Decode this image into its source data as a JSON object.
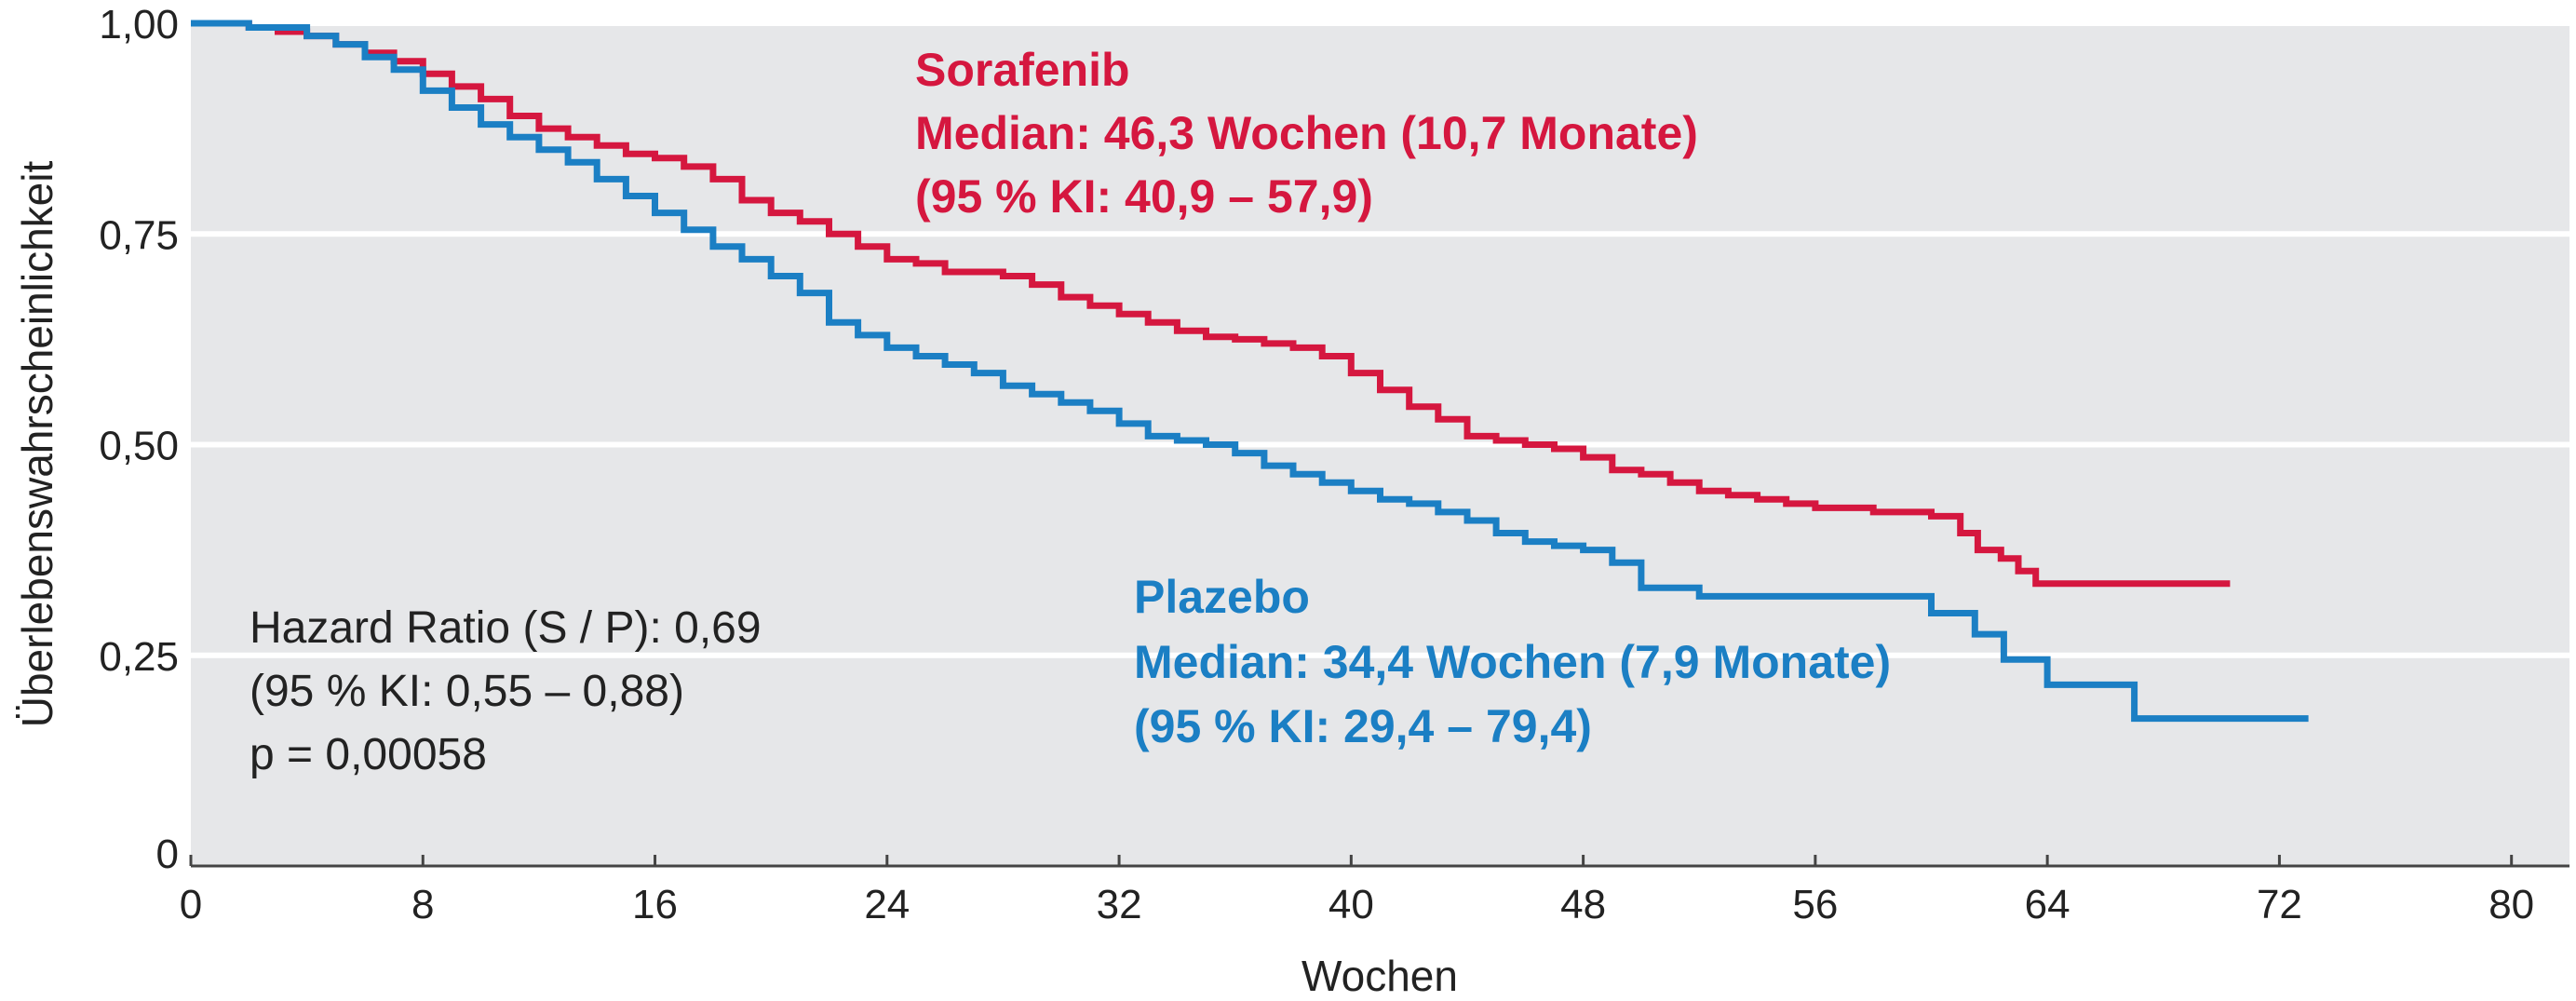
{
  "chart_data": {
    "type": "line",
    "subtype": "kaplan-meier step curve",
    "title": "",
    "xlabel": "Wochen",
    "ylabel": "Überlebenswahrscheinlichkeit",
    "xlim": [
      0,
      82
    ],
    "ylim": [
      0,
      1.0
    ],
    "xticks": [
      0,
      8,
      16,
      24,
      32,
      40,
      48,
      56,
      64,
      72,
      80
    ],
    "xtick_labels": [
      "0",
      "8",
      "16",
      "24",
      "32",
      "40",
      "48",
      "56",
      "64",
      "72",
      "80"
    ],
    "yticks": [
      0,
      0.25,
      0.5,
      0.75,
      1.0
    ],
    "ytick_labels": [
      "0",
      "0,25",
      "0,50",
      "0,75",
      "1,00"
    ],
    "grid": "horizontal",
    "background": "#e6e7e9",
    "series": [
      {
        "name": "Sorafenib",
        "color": "#d5173f",
        "x": [
          0,
          2,
          3,
          4,
          5,
          6,
          7,
          8,
          9,
          10,
          11,
          12,
          13,
          14,
          15,
          16,
          17,
          18,
          19,
          20,
          21,
          22,
          23,
          24,
          25,
          26,
          27,
          28,
          29,
          30,
          31,
          32,
          33,
          34,
          35,
          36,
          37,
          38,
          39,
          40,
          41,
          42,
          43,
          44,
          45,
          46,
          47,
          48,
          49,
          50,
          51,
          52,
          53,
          54,
          55,
          56,
          58,
          60,
          61,
          61.6,
          62.4,
          63,
          63.6,
          70.3
        ],
        "y": [
          1.0,
          0.995,
          0.99,
          0.985,
          0.975,
          0.965,
          0.955,
          0.94,
          0.925,
          0.91,
          0.89,
          0.875,
          0.865,
          0.855,
          0.845,
          0.84,
          0.83,
          0.815,
          0.79,
          0.775,
          0.765,
          0.75,
          0.735,
          0.72,
          0.715,
          0.705,
          0.705,
          0.7,
          0.69,
          0.675,
          0.665,
          0.655,
          0.645,
          0.635,
          0.628,
          0.625,
          0.62,
          0.615,
          0.605,
          0.585,
          0.565,
          0.545,
          0.53,
          0.51,
          0.505,
          0.5,
          0.495,
          0.485,
          0.47,
          0.465,
          0.455,
          0.445,
          0.44,
          0.435,
          0.43,
          0.425,
          0.42,
          0.415,
          0.395,
          0.375,
          0.365,
          0.35,
          0.335,
          0.335
        ]
      },
      {
        "name": "Plazebo",
        "color": "#1b7fc4",
        "x": [
          0,
          2,
          4,
          5,
          6,
          7,
          8,
          9,
          10,
          11,
          12,
          13,
          14,
          15,
          16,
          17,
          18,
          19,
          20,
          21,
          22,
          23,
          24,
          25,
          26,
          27,
          28,
          29,
          30,
          31,
          32,
          33,
          34,
          35,
          36,
          37,
          38,
          39,
          40,
          41,
          42,
          43,
          44,
          45,
          46,
          47,
          48,
          49,
          50,
          52,
          56,
          60,
          61.5,
          62.5,
          64,
          67,
          73
        ],
        "y": [
          1.0,
          0.995,
          0.985,
          0.975,
          0.96,
          0.945,
          0.92,
          0.9,
          0.88,
          0.865,
          0.85,
          0.835,
          0.815,
          0.795,
          0.775,
          0.755,
          0.735,
          0.72,
          0.7,
          0.68,
          0.645,
          0.63,
          0.615,
          0.605,
          0.595,
          0.585,
          0.57,
          0.56,
          0.55,
          0.54,
          0.525,
          0.51,
          0.505,
          0.5,
          0.49,
          0.475,
          0.465,
          0.455,
          0.445,
          0.435,
          0.43,
          0.42,
          0.41,
          0.395,
          0.385,
          0.38,
          0.375,
          0.36,
          0.33,
          0.32,
          0.32,
          0.3,
          0.275,
          0.245,
          0.215,
          0.175,
          0.175
        ]
      }
    ],
    "annotations": {
      "sorafenib": [
        "Sorafenib",
        "Median: 46,3 Wochen (10,7 Monate)",
        "(95 % KI: 40,9 – 57,9)"
      ],
      "plazebo": [
        "Plazebo",
        "Median: 34,4 Wochen (7,9 Monate)",
        "(95 % KI: 29,4 – 79,4)"
      ],
      "stats": [
        "Hazard Ratio (S / P): 0,69",
        "(95 % KI: 0,55 – 0,88)",
        "p = 0,00058"
      ]
    }
  }
}
